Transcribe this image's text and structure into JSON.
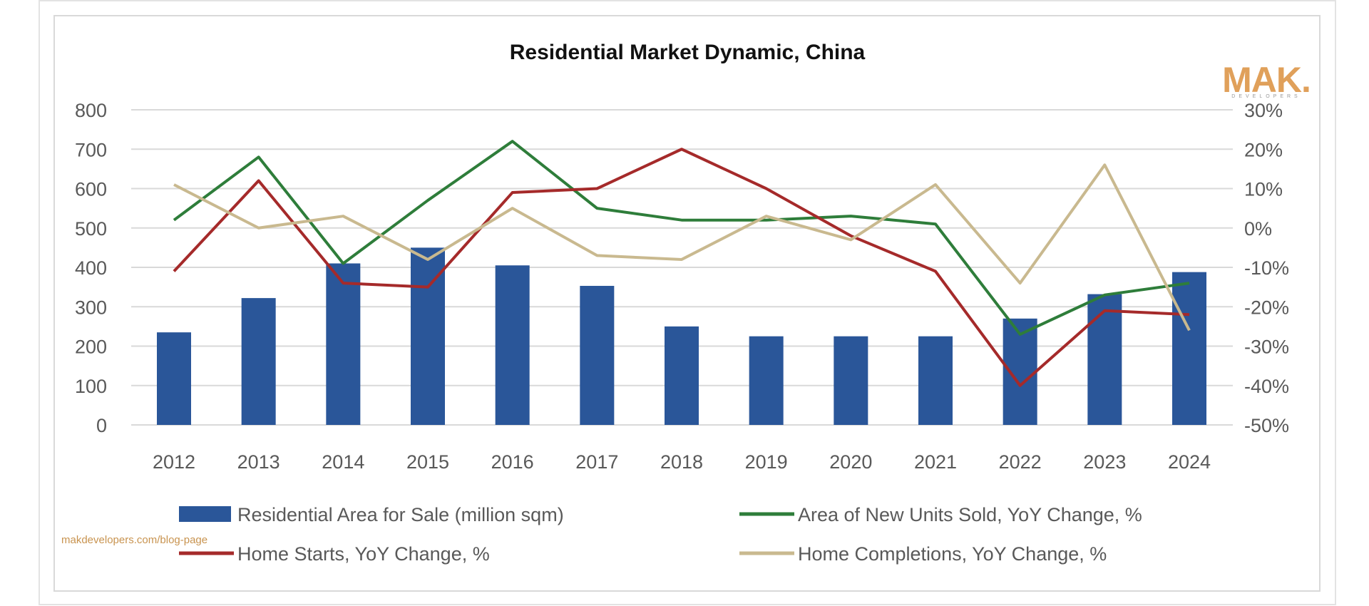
{
  "chart_data": {
    "type": "bar+line",
    "title": "Residential Market Dynamic, China",
    "categories": [
      "2012",
      "2013",
      "2014",
      "2015",
      "2016",
      "2017",
      "2018",
      "2019",
      "2020",
      "2021",
      "2022",
      "2023",
      "2024"
    ],
    "y_left": {
      "range": [
        0,
        800
      ],
      "ticks": [
        "0",
        "100",
        "200",
        "300",
        "400",
        "500",
        "600",
        "700",
        "800"
      ]
    },
    "y_right": {
      "range": [
        -50,
        30
      ],
      "unit": "%",
      "ticks": [
        "-50%",
        "-40%",
        "-30%",
        "-20%",
        "-10%",
        "0%",
        "10%",
        "20%",
        "30%"
      ]
    },
    "grid": true,
    "legend_placement": "bottom",
    "series": [
      {
        "name": "Residential Area for Sale (million sqm)",
        "type": "bar",
        "axis": "left",
        "color": "#2a5699",
        "values": [
          235,
          322,
          410,
          450,
          405,
          353,
          250,
          225,
          225,
          225,
          270,
          332,
          388
        ]
      },
      {
        "name": "Area of New Units Sold, YoY Change, %",
        "type": "line",
        "axis": "right",
        "color": "#2e7d3a",
        "values": [
          2,
          18,
          -9,
          7,
          22,
          5,
          2,
          2,
          3,
          1,
          -27,
          -17,
          -14
        ]
      },
      {
        "name": "Home Starts, YoY Change, %",
        "type": "line",
        "axis": "right",
        "color": "#a52a2a",
        "values": [
          -11,
          12,
          -14,
          -15,
          9,
          10,
          20,
          10,
          -2,
          -11,
          -40,
          -21,
          -22
        ]
      },
      {
        "name": "Home Completions, YoY Change, %",
        "type": "line",
        "axis": "right",
        "color": "#c9b98f",
        "values": [
          11,
          0,
          3,
          -8,
          5,
          -7,
          -8,
          3,
          -3,
          11,
          -14,
          16,
          -26
        ]
      }
    ]
  },
  "watermark": {
    "text": "makdevelopers.com/blog-page",
    "color": "#c8934f"
  },
  "logo": {
    "text": "MAK.",
    "subtext": "DEVELOPERS",
    "color": "#e0a05a"
  }
}
